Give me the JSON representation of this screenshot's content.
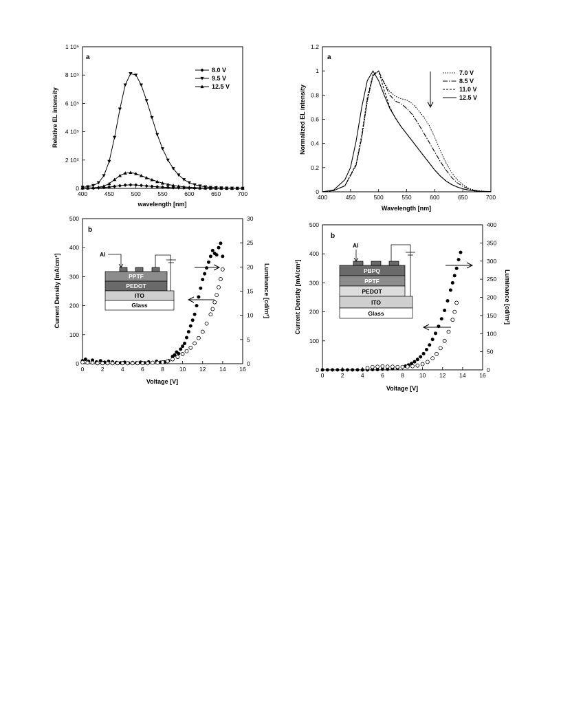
{
  "chart_data": [
    {
      "type": "line",
      "panel_label": "a",
      "xlabel": "wavelength [nm]",
      "ylabel": "Relative EL intensity",
      "xlim": [
        400,
        700
      ],
      "ylim": [
        0,
        1000000
      ],
      "xticks": [
        400,
        450,
        500,
        550,
        600,
        650,
        700
      ],
      "yticks": [
        0,
        200000,
        400000,
        600000,
        800000,
        1000000
      ],
      "ytick_labels": [
        "0",
        "2 10⁵",
        "4 10⁵",
        "6 10⁵",
        "8 10⁵",
        "1 10⁶"
      ],
      "legend_position": "top-right",
      "series": [
        {
          "name": "8.0 V",
          "marker": "diamond",
          "x": [
            400,
            410,
            420,
            430,
            440,
            450,
            460,
            470,
            480,
            490,
            500,
            510,
            520,
            530,
            540,
            550,
            560,
            570,
            580,
            590,
            600,
            610,
            620,
            630,
            640,
            650,
            660,
            670,
            680,
            690,
            700
          ],
          "y": [
            1000,
            1500,
            2000,
            3500,
            6000,
            9000,
            14000,
            19000,
            23000,
            25000,
            24000,
            21000,
            17000,
            14000,
            11000,
            8500,
            6500,
            5000,
            4000,
            3000,
            2200,
            1700,
            1300,
            1000,
            800,
            600,
            450,
            350,
            250,
            200,
            150
          ]
        },
        {
          "name": "9.5 V",
          "marker": "triangle-down",
          "x": [
            400,
            410,
            420,
            430,
            440,
            450,
            460,
            470,
            480,
            490,
            500,
            510,
            520,
            530,
            540,
            550,
            560,
            570,
            580,
            590,
            600,
            610,
            620,
            630,
            640,
            650,
            660,
            670,
            680,
            690,
            700
          ],
          "y": [
            8000,
            12000,
            20000,
            40000,
            90000,
            190000,
            360000,
            560000,
            730000,
            810000,
            800000,
            730000,
            620000,
            500000,
            380000,
            280000,
            200000,
            140000,
            95000,
            62000,
            40000,
            26000,
            17000,
            11000,
            7000,
            4500,
            3000,
            2000,
            1500,
            1000,
            800
          ]
        },
        {
          "name": "12.5 V",
          "marker": "triangle-up",
          "x": [
            400,
            410,
            420,
            430,
            440,
            450,
            460,
            470,
            480,
            490,
            500,
            510,
            520,
            530,
            540,
            550,
            560,
            570,
            580,
            590,
            600,
            610,
            620,
            630,
            640,
            650,
            660,
            670,
            680,
            690,
            700
          ],
          "y": [
            2000,
            3000,
            4500,
            8000,
            16000,
            33000,
            62000,
            90000,
            108000,
            112000,
            104000,
            90000,
            75000,
            61000,
            48000,
            37000,
            28000,
            21000,
            15000,
            11000,
            7500,
            5200,
            3600,
            2500,
            1800,
            1300,
            900,
            650,
            450,
            300,
            200
          ]
        }
      ]
    },
    {
      "type": "line",
      "panel_label": "a",
      "xlabel": "Wavelength [nm]",
      "ylabel": "Normalized EL intensity",
      "xlim": [
        400,
        700
      ],
      "ylim": [
        0,
        1.2
      ],
      "xticks": [
        400,
        450,
        500,
        550,
        600,
        650,
        700
      ],
      "yticks": [
        0,
        0.2,
        0.4,
        0.6,
        0.8,
        1,
        1.2
      ],
      "legend_position": "top-right",
      "series": [
        {
          "name": "7.0 V",
          "style": "dotted",
          "x": [
            400,
            420,
            440,
            460,
            470,
            480,
            490,
            500,
            510,
            520,
            530,
            540,
            550,
            560,
            570,
            580,
            590,
            600,
            610,
            620,
            630,
            640,
            650,
            660,
            670,
            680,
            690,
            700
          ],
          "y": [
            0,
            0.01,
            0.05,
            0.22,
            0.45,
            0.75,
            0.96,
            1.0,
            0.9,
            0.83,
            0.79,
            0.77,
            0.76,
            0.73,
            0.68,
            0.62,
            0.55,
            0.45,
            0.34,
            0.24,
            0.16,
            0.1,
            0.06,
            0.03,
            0.015,
            0.008,
            0.004,
            0.002
          ]
        },
        {
          "name": "8.5 V",
          "style": "dash-dot",
          "x": [
            400,
            420,
            440,
            460,
            470,
            480,
            490,
            500,
            510,
            520,
            530,
            540,
            550,
            560,
            570,
            580,
            590,
            600,
            610,
            620,
            630,
            640,
            650,
            660,
            670,
            680,
            690,
            700
          ],
          "y": [
            0,
            0.01,
            0.05,
            0.22,
            0.45,
            0.76,
            0.96,
            1.0,
            0.9,
            0.8,
            0.75,
            0.73,
            0.69,
            0.64,
            0.57,
            0.49,
            0.41,
            0.33,
            0.25,
            0.18,
            0.12,
            0.075,
            0.045,
            0.025,
            0.012,
            0.006,
            0.003,
            0.001
          ]
        },
        {
          "name": "11.0 V",
          "style": "dashed",
          "x": [
            400,
            420,
            440,
            460,
            470,
            480,
            490,
            500,
            510,
            520,
            530,
            540,
            550,
            560,
            570,
            580,
            590,
            600,
            610,
            620,
            630,
            640,
            650,
            660,
            670,
            680,
            690,
            700
          ],
          "y": [
            0,
            0.01,
            0.05,
            0.23,
            0.47,
            0.78,
            0.97,
            1.0,
            0.84,
            0.7,
            0.61,
            0.54,
            0.48,
            0.42,
            0.36,
            0.3,
            0.24,
            0.18,
            0.13,
            0.09,
            0.06,
            0.04,
            0.025,
            0.015,
            0.008,
            0.004,
            0.002,
            0.001
          ]
        },
        {
          "name": "12.5 V",
          "style": "solid",
          "x": [
            400,
            420,
            440,
            450,
            460,
            470,
            480,
            490,
            500,
            510,
            520,
            530,
            540,
            550,
            560,
            570,
            580,
            590,
            600,
            610,
            620,
            630,
            640,
            650,
            660,
            670,
            680,
            690,
            700
          ],
          "y": [
            0,
            0.015,
            0.1,
            0.2,
            0.42,
            0.7,
            0.92,
            1.0,
            0.92,
            0.8,
            0.69,
            0.61,
            0.54,
            0.48,
            0.42,
            0.36,
            0.3,
            0.24,
            0.18,
            0.13,
            0.09,
            0.06,
            0.04,
            0.025,
            0.015,
            0.008,
            0.004,
            0.002,
            0.001
          ]
        }
      ],
      "annotations": [
        "downward arrow"
      ]
    },
    {
      "type": "scatter",
      "panel_label": "b",
      "xlabel": "Voltage [V]",
      "ylabel": "Current Density [mA/cm²]",
      "y2label": "Luminance [cd/m²]",
      "xlim": [
        0,
        16
      ],
      "ylim": [
        0,
        500
      ],
      "y2lim": [
        0,
        30
      ],
      "xticks": [
        0,
        2,
        4,
        6,
        8,
        10,
        12,
        14,
        16
      ],
      "yticks": [
        0,
        100,
        200,
        300,
        400,
        500
      ],
      "y2ticks": [
        0,
        5,
        10,
        15,
        20,
        25,
        30
      ],
      "inset_layers": [
        "PPTF",
        "PEDOT",
        "ITO",
        "Glass"
      ],
      "inset_electrode_label": "Al",
      "series": [
        {
          "marker": "filled-circle",
          "axis": "left",
          "x": [
            0,
            0.3,
            0.6,
            1,
            1.4,
            1.8,
            2.2,
            2.6,
            3,
            3.4,
            3.8,
            4.2,
            4.6,
            5,
            5.4,
            5.8,
            6.2,
            6.6,
            7,
            7.4,
            7.8,
            8.2,
            8.6,
            9,
            9.2,
            9.4,
            9.6,
            9.8,
            10,
            10.2,
            10.4,
            10.6,
            10.8,
            11,
            11.2,
            11.4,
            11.6,
            11.8,
            12,
            12.2,
            12.4,
            12.6,
            12.8,
            13,
            13.2,
            13.4,
            13.6,
            13.8,
            14
          ],
          "y": [
            10,
            15,
            8,
            12,
            6,
            10,
            5,
            8,
            6,
            4,
            3,
            5,
            2,
            4,
            3,
            5,
            3,
            6,
            4,
            8,
            5,
            6,
            10,
            25,
            30,
            40,
            35,
            50,
            60,
            70,
            90,
            110,
            130,
            150,
            170,
            200,
            230,
            260,
            290,
            310,
            330,
            350,
            370,
            390,
            380,
            375,
            400,
            415,
            370
          ]
        },
        {
          "marker": "open-circle",
          "axis": "right",
          "x": [
            0,
            0.5,
            1,
            1.5,
            2,
            2.5,
            3,
            3.5,
            4,
            4.5,
            5,
            5.5,
            6,
            6.5,
            7,
            7.5,
            8,
            8.5,
            9,
            9.5,
            10,
            10.4,
            10.8,
            11.2,
            11.6,
            12,
            12.4,
            12.8,
            13,
            13.2,
            13.4,
            13.6,
            13.8,
            14
          ],
          "y": [
            0.3,
            0.2,
            0.2,
            0.1,
            0.1,
            0.1,
            0.1,
            0.1,
            0.1,
            0.1,
            0.1,
            0.1,
            0.1,
            0.1,
            0.2,
            0.2,
            0.3,
            0.5,
            0.9,
            1.4,
            2.0,
            2.6,
            3.3,
            4.2,
            5.3,
            6.6,
            8.3,
            10.2,
            11.3,
            12.7,
            14.2,
            15.8,
            17.5,
            19.5
          ]
        }
      ]
    },
    {
      "type": "scatter",
      "panel_label": "b",
      "xlabel": "Voltage [V]",
      "ylabel": "Current Density [mA/cm²]",
      "y2label": "Luminance [cd/m²]",
      "xlim": [
        0,
        16
      ],
      "ylim": [
        0,
        500
      ],
      "y2lim": [
        0,
        400
      ],
      "xticks": [
        0,
        2,
        4,
        6,
        8,
        10,
        12,
        14,
        16
      ],
      "yticks": [
        0,
        100,
        200,
        300,
        400,
        500
      ],
      "y2ticks": [
        0,
        50,
        100,
        150,
        200,
        250,
        300,
        350,
        400
      ],
      "inset_layers": [
        "PBPQ",
        "PPTF",
        "PEDOT",
        "ITO",
        "Glass"
      ],
      "inset_electrode_label": "Al",
      "series": [
        {
          "marker": "filled-circle",
          "axis": "left",
          "x": [
            0,
            0.5,
            1,
            1.5,
            2,
            2.5,
            3,
            3.5,
            4,
            4.5,
            5,
            5.5,
            6,
            6.5,
            7,
            7.5,
            8,
            8.3,
            8.6,
            8.9,
            9.2,
            9.5,
            9.8,
            10.1,
            10.4,
            10.7,
            11,
            11.3,
            11.6,
            11.9,
            12.2,
            12.5,
            12.8,
            13,
            13.2,
            13.4,
            13.6,
            13.8
          ],
          "y": [
            0,
            0,
            0,
            0,
            0,
            0,
            0,
            0,
            0,
            0,
            1,
            1,
            2,
            2,
            4,
            6,
            10,
            13,
            17,
            22,
            28,
            36,
            45,
            56,
            70,
            86,
            105,
            126,
            150,
            176,
            205,
            238,
            275,
            300,
            325,
            350,
            380,
            405
          ]
        },
        {
          "marker": "open-circle",
          "axis": "right",
          "x": [
            4.5,
            5,
            5.5,
            6,
            6.5,
            7,
            7.5,
            8,
            8.5,
            9,
            9.5,
            10,
            10.5,
            11,
            11.4,
            11.8,
            12.2,
            12.6,
            13,
            13.2,
            13.4
          ],
          "y": [
            5,
            8,
            9,
            10,
            9,
            9,
            8,
            8,
            9,
            10,
            12,
            16,
            22,
            32,
            44,
            60,
            80,
            105,
            138,
            160,
            185
          ]
        }
      ]
    }
  ]
}
